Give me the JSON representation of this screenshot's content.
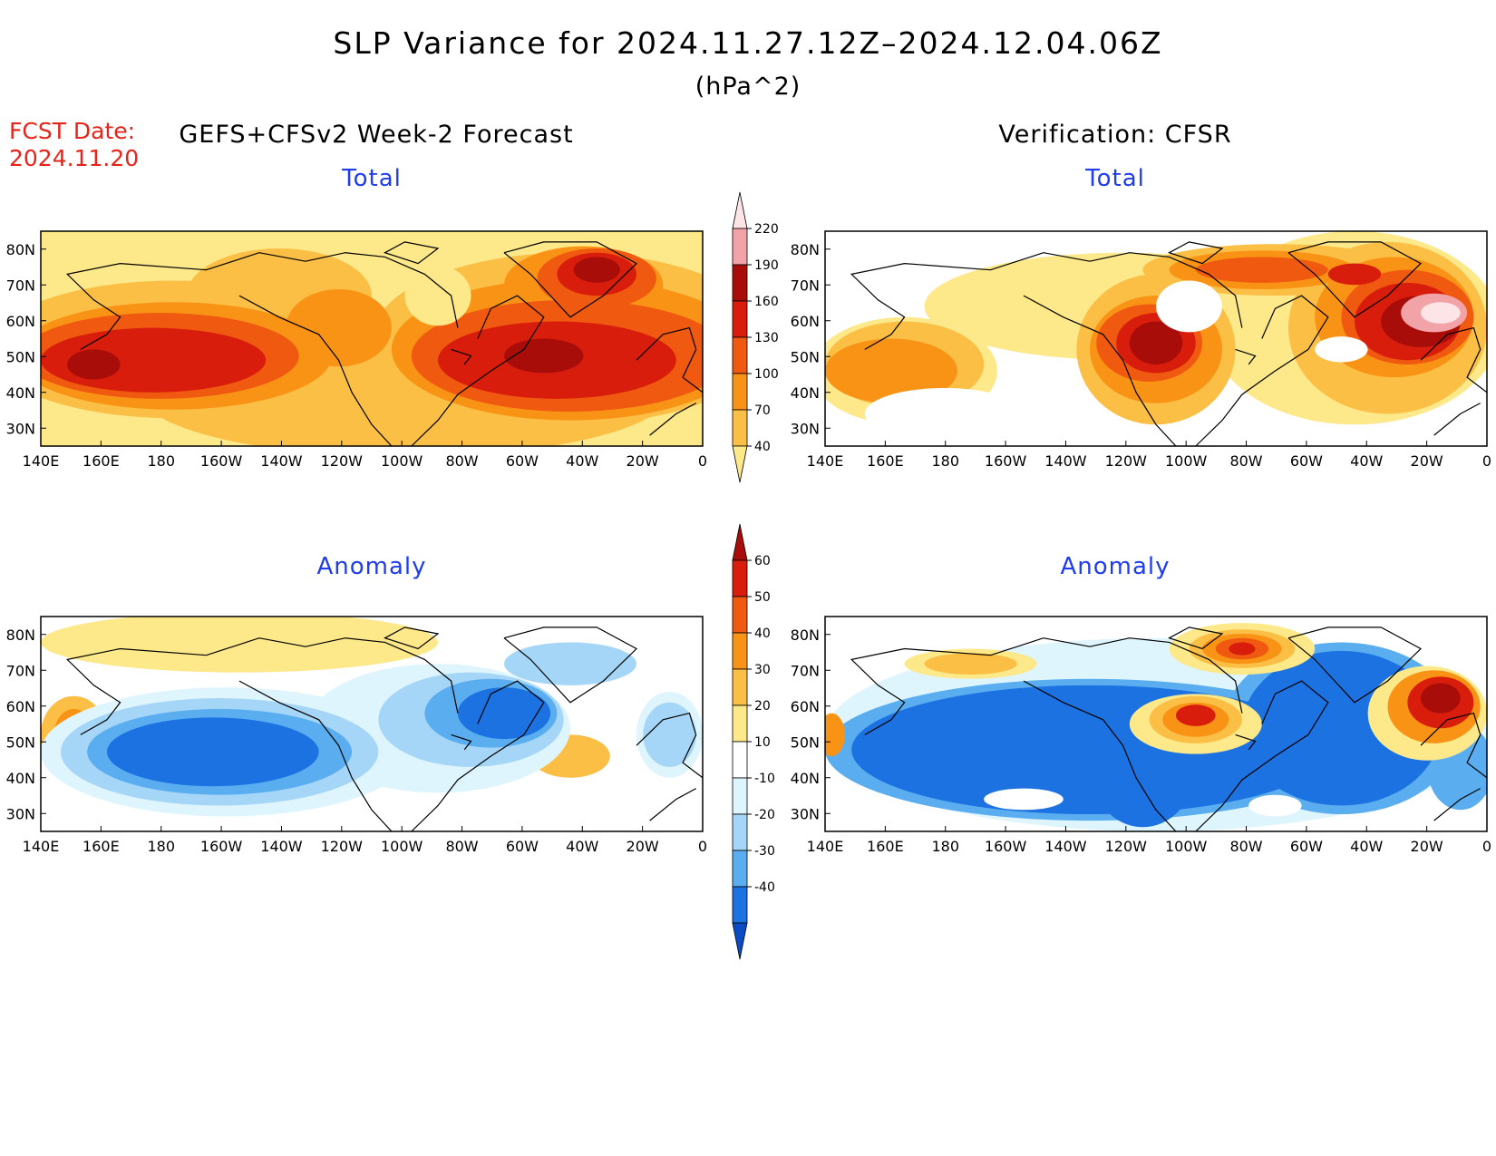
{
  "title": "SLP Variance for 2024.11.27.12Z–2024.12.04.06Z",
  "units": "(hPa^2)",
  "forecast_date_label": "FCST Date:",
  "forecast_date": "2024.11.20",
  "left_column_title": "GEFS+CFSv2 Week-2 Forecast",
  "right_column_title": "Verification: CFSR",
  "panels": {
    "forecast_total": {
      "title": "Total"
    },
    "verification_total": {
      "title": "Total"
    },
    "forecast_anomaly": {
      "title": "Anomaly"
    },
    "verification_anomaly": {
      "title": "Anomaly"
    }
  },
  "lon_ticks": [
    "140E",
    "160E",
    "180",
    "160W",
    "140W",
    "120W",
    "100W",
    "80W",
    "60W",
    "40W",
    "20W",
    "0"
  ],
  "lat_ticks": [
    "80N",
    "70N",
    "60N",
    "50N",
    "40N",
    "30N"
  ],
  "map_extent": {
    "lon": [
      140,
      360
    ],
    "lat": [
      25,
      85
    ]
  },
  "colorbars": {
    "total": {
      "labels": [
        "40",
        "70",
        "100",
        "130",
        "160",
        "190",
        "220"
      ],
      "colors": [
        "#fde88a",
        "#fbbf45",
        "#f99315",
        "#f05a10",
        "#d91d0c",
        "#a80d0a",
        "#f2a3a8",
        "#fde4e6"
      ]
    },
    "anomaly": {
      "labels": [
        "60",
        "50",
        "40",
        "30",
        "20",
        "10",
        "-10",
        "-20",
        "-30",
        "-40"
      ],
      "colors": [
        "#a80d0a",
        "#d91d0c",
        "#f05a10",
        "#f99315",
        "#fbbf45",
        "#fde88a",
        "#ffffff",
        "#dff5fd",
        "#a6d6f7",
        "#5aaef0",
        "#1c72e0",
        "#0b4cc4"
      ]
    }
  }
}
